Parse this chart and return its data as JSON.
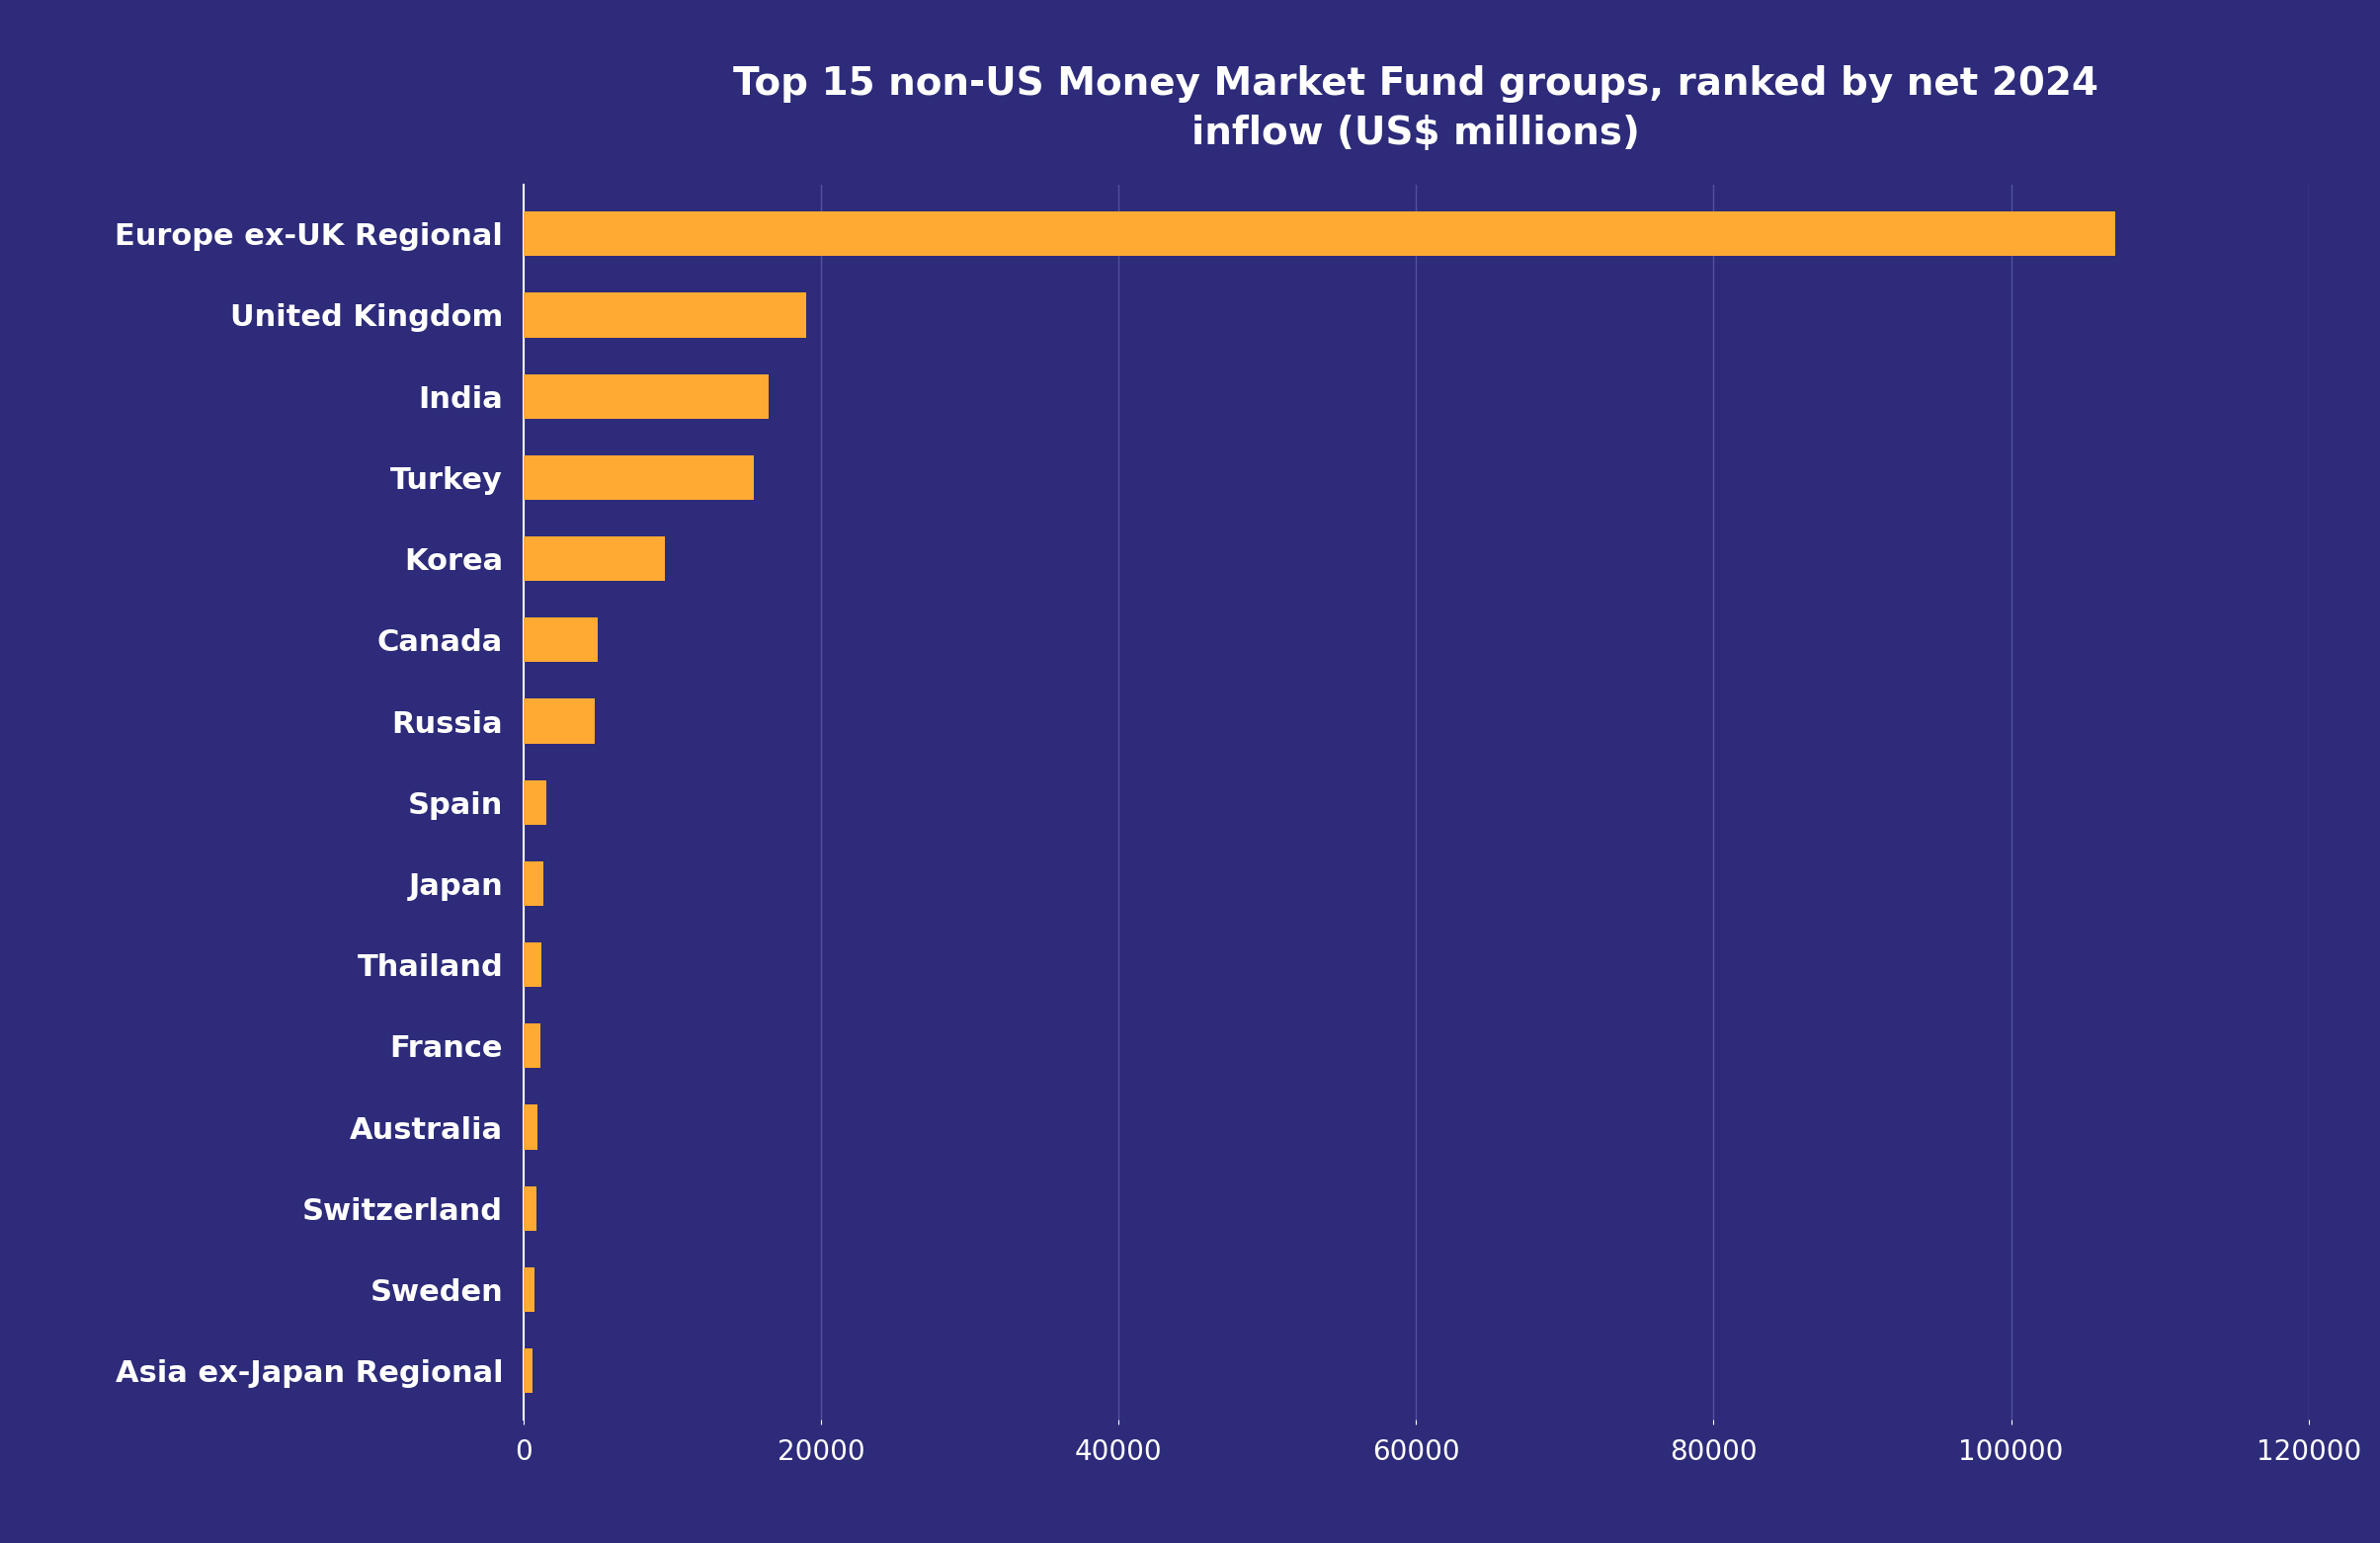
{
  "title": "Top 15 non-US Money Market Fund groups, ranked by net 2024\ninflow (US$ millions)",
  "background_color": "#2d2b7a",
  "bar_color": "#ffaa33",
  "grid_color": "#5550a0",
  "text_color": "#ffffff",
  "categories": [
    "Europe ex-UK Regional",
    "United Kingdom",
    "India",
    "Turkey",
    "Korea",
    "Canada",
    "Russia",
    "Spain",
    "Japan",
    "Thailand",
    "France",
    "Australia",
    "Switzerland",
    "Sweden",
    "Asia ex-Japan Regional"
  ],
  "values": [
    107000,
    19000,
    16500,
    15500,
    9500,
    5000,
    4800,
    1500,
    1300,
    1200,
    1100,
    950,
    850,
    700,
    600
  ],
  "xlim": [
    0,
    120000
  ],
  "xticks": [
    0,
    20000,
    40000,
    60000,
    80000,
    100000,
    120000
  ],
  "title_fontsize": 28,
  "label_fontsize": 22,
  "tick_fontsize": 20,
  "bar_height": 0.55
}
